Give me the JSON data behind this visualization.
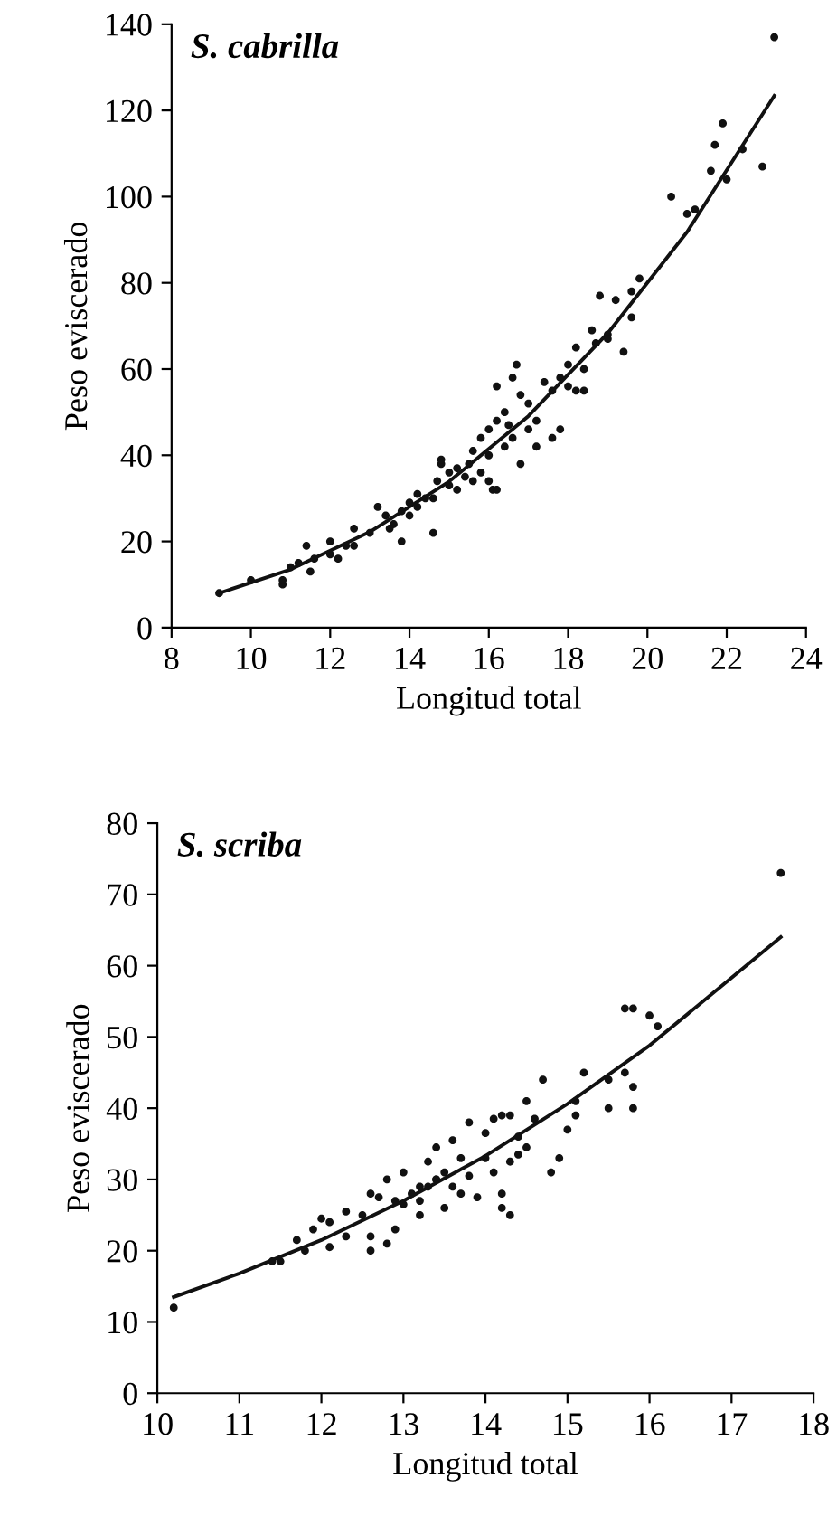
{
  "chart_data": [
    {
      "type": "scatter",
      "title": "S. cabrilla",
      "xlabel": "Longitud total",
      "ylabel": "Peso eviscerado",
      "xlim": [
        8,
        24
      ],
      "xticks": [
        8,
        10,
        12,
        14,
        16,
        18,
        20,
        22,
        24
      ],
      "ylim": [
        0,
        140
      ],
      "yticks": [
        0,
        20,
        40,
        60,
        80,
        100,
        120,
        140
      ],
      "grid": false,
      "series": [
        {
          "marker": "circle",
          "color": "#111111",
          "x": [
            9.2,
            10,
            10.8,
            10.8,
            11,
            11.2,
            11.4,
            11.5,
            11.6,
            12,
            12,
            12.2,
            12.4,
            12.6,
            12.6,
            13,
            13.2,
            13.4,
            13.6,
            13.8,
            13.8,
            14,
            14,
            14.2,
            14.4,
            14.6,
            14.6,
            14.7,
            14.8,
            14.8,
            15,
            15,
            15.2,
            15.4,
            15.5,
            15.6,
            15.6,
            15.8,
            15.8,
            16,
            16,
            16,
            16.1,
            16.2,
            16.2,
            16.2,
            16.4,
            16.4,
            16.6,
            16.6,
            16.7,
            16.8,
            16.8,
            17,
            17,
            17.2,
            17.2,
            17.4,
            17.6,
            17.6,
            17.8,
            18,
            18,
            18.2,
            18.4,
            18.4,
            18.6,
            18.7,
            18.8,
            19,
            19.2,
            19.4,
            19.6,
            19.6,
            19.8,
            20.6,
            21,
            21.2,
            21.6,
            21.7,
            22,
            21.9,
            22.4,
            22.9,
            23.2,
            13.5,
            14.2,
            15.2,
            16.5,
            17.8,
            18.2,
            19
          ],
          "values": [
            8,
            11,
            10,
            11,
            14,
            15,
            19,
            13,
            16,
            17,
            20,
            16,
            19,
            19,
            23,
            22,
            28,
            26,
            24,
            20,
            27,
            29,
            26,
            28,
            30,
            22,
            30,
            34,
            38,
            39,
            33,
            36,
            32,
            35,
            38,
            34,
            41,
            36,
            44,
            40,
            46,
            34,
            32,
            32,
            48,
            56,
            42,
            50,
            44,
            58,
            61,
            38,
            54,
            46,
            52,
            48,
            42,
            57,
            55,
            44,
            46,
            61,
            56,
            65,
            55,
            60,
            69,
            66,
            77,
            68,
            76,
            64,
            72,
            78,
            81,
            100,
            96,
            97,
            106,
            112,
            104,
            117,
            111,
            107,
            137,
            23,
            31,
            37,
            47,
            58,
            55,
            67
          ]
        },
        {
          "type": "line",
          "color": "#111111",
          "line_style": "solid",
          "x": [
            9.2,
            11,
            13,
            15,
            17,
            19,
            21,
            23.2
          ],
          "values": [
            8.0,
            13.5,
            22.2,
            33.9,
            49.1,
            68.3,
            91.8,
            123.4
          ]
        }
      ]
    },
    {
      "type": "scatter",
      "title": "S. scriba",
      "xlabel": "Longitud total",
      "ylabel": "Peso eviscerado",
      "xlim": [
        10,
        18
      ],
      "xticks": [
        10,
        11,
        12,
        13,
        14,
        15,
        16,
        17,
        18
      ],
      "ylim": [
        0,
        80
      ],
      "yticks": [
        0,
        10,
        20,
        30,
        40,
        50,
        60,
        70,
        80
      ],
      "grid": false,
      "series": [
        {
          "marker": "circle",
          "color": "#111111",
          "x": [
            10.2,
            11.4,
            11.5,
            11.7,
            11.8,
            11.9,
            12,
            12.1,
            12.1,
            12.3,
            12.3,
            12.5,
            12.6,
            12.6,
            12.6,
            12.7,
            12.8,
            12.8,
            12.9,
            12.9,
            13,
            13,
            13.1,
            13.2,
            13.2,
            13.3,
            13.3,
            13.4,
            13.4,
            13.5,
            13.5,
            13.6,
            13.6,
            13.7,
            13.7,
            13.8,
            13.8,
            13.9,
            14,
            14,
            14.1,
            14.1,
            14.2,
            14.2,
            14.2,
            14.3,
            14.3,
            14.4,
            14.4,
            14.5,
            14.5,
            14.6,
            14.7,
            14.8,
            14.9,
            15,
            15.1,
            15.1,
            15.2,
            15.5,
            15.5,
            15.7,
            15.8,
            15.8,
            15.7,
            15.8,
            16,
            16.1,
            17.6,
            13.4,
            13.2,
            14.3
          ],
          "values": [
            12,
            18.5,
            18.5,
            21.5,
            20,
            23,
            24.5,
            20.5,
            24,
            22,
            25.5,
            25,
            20,
            22,
            28,
            27.5,
            21,
            30,
            23,
            27,
            26.5,
            31,
            28,
            25,
            27,
            32.5,
            29,
            34.5,
            30,
            26,
            31,
            29,
            35.5,
            33,
            28,
            38,
            30.5,
            27.5,
            36.5,
            33,
            31,
            38.5,
            28,
            26,
            39,
            32.5,
            25,
            33.5,
            36,
            34.5,
            41,
            38.5,
            44,
            31,
            33,
            37,
            39,
            41,
            45,
            40,
            44,
            45,
            43,
            40,
            54,
            54,
            53,
            51.5,
            73,
            30,
            29,
            39
          ]
        },
        {
          "type": "line",
          "color": "#111111",
          "line_style": "solid",
          "x": [
            10.2,
            11,
            12,
            13,
            14,
            15,
            16,
            17.6
          ],
          "values": [
            13.5,
            16.8,
            21.5,
            27.0,
            33.3,
            40.6,
            48.8,
            64.0
          ]
        }
      ]
    }
  ]
}
